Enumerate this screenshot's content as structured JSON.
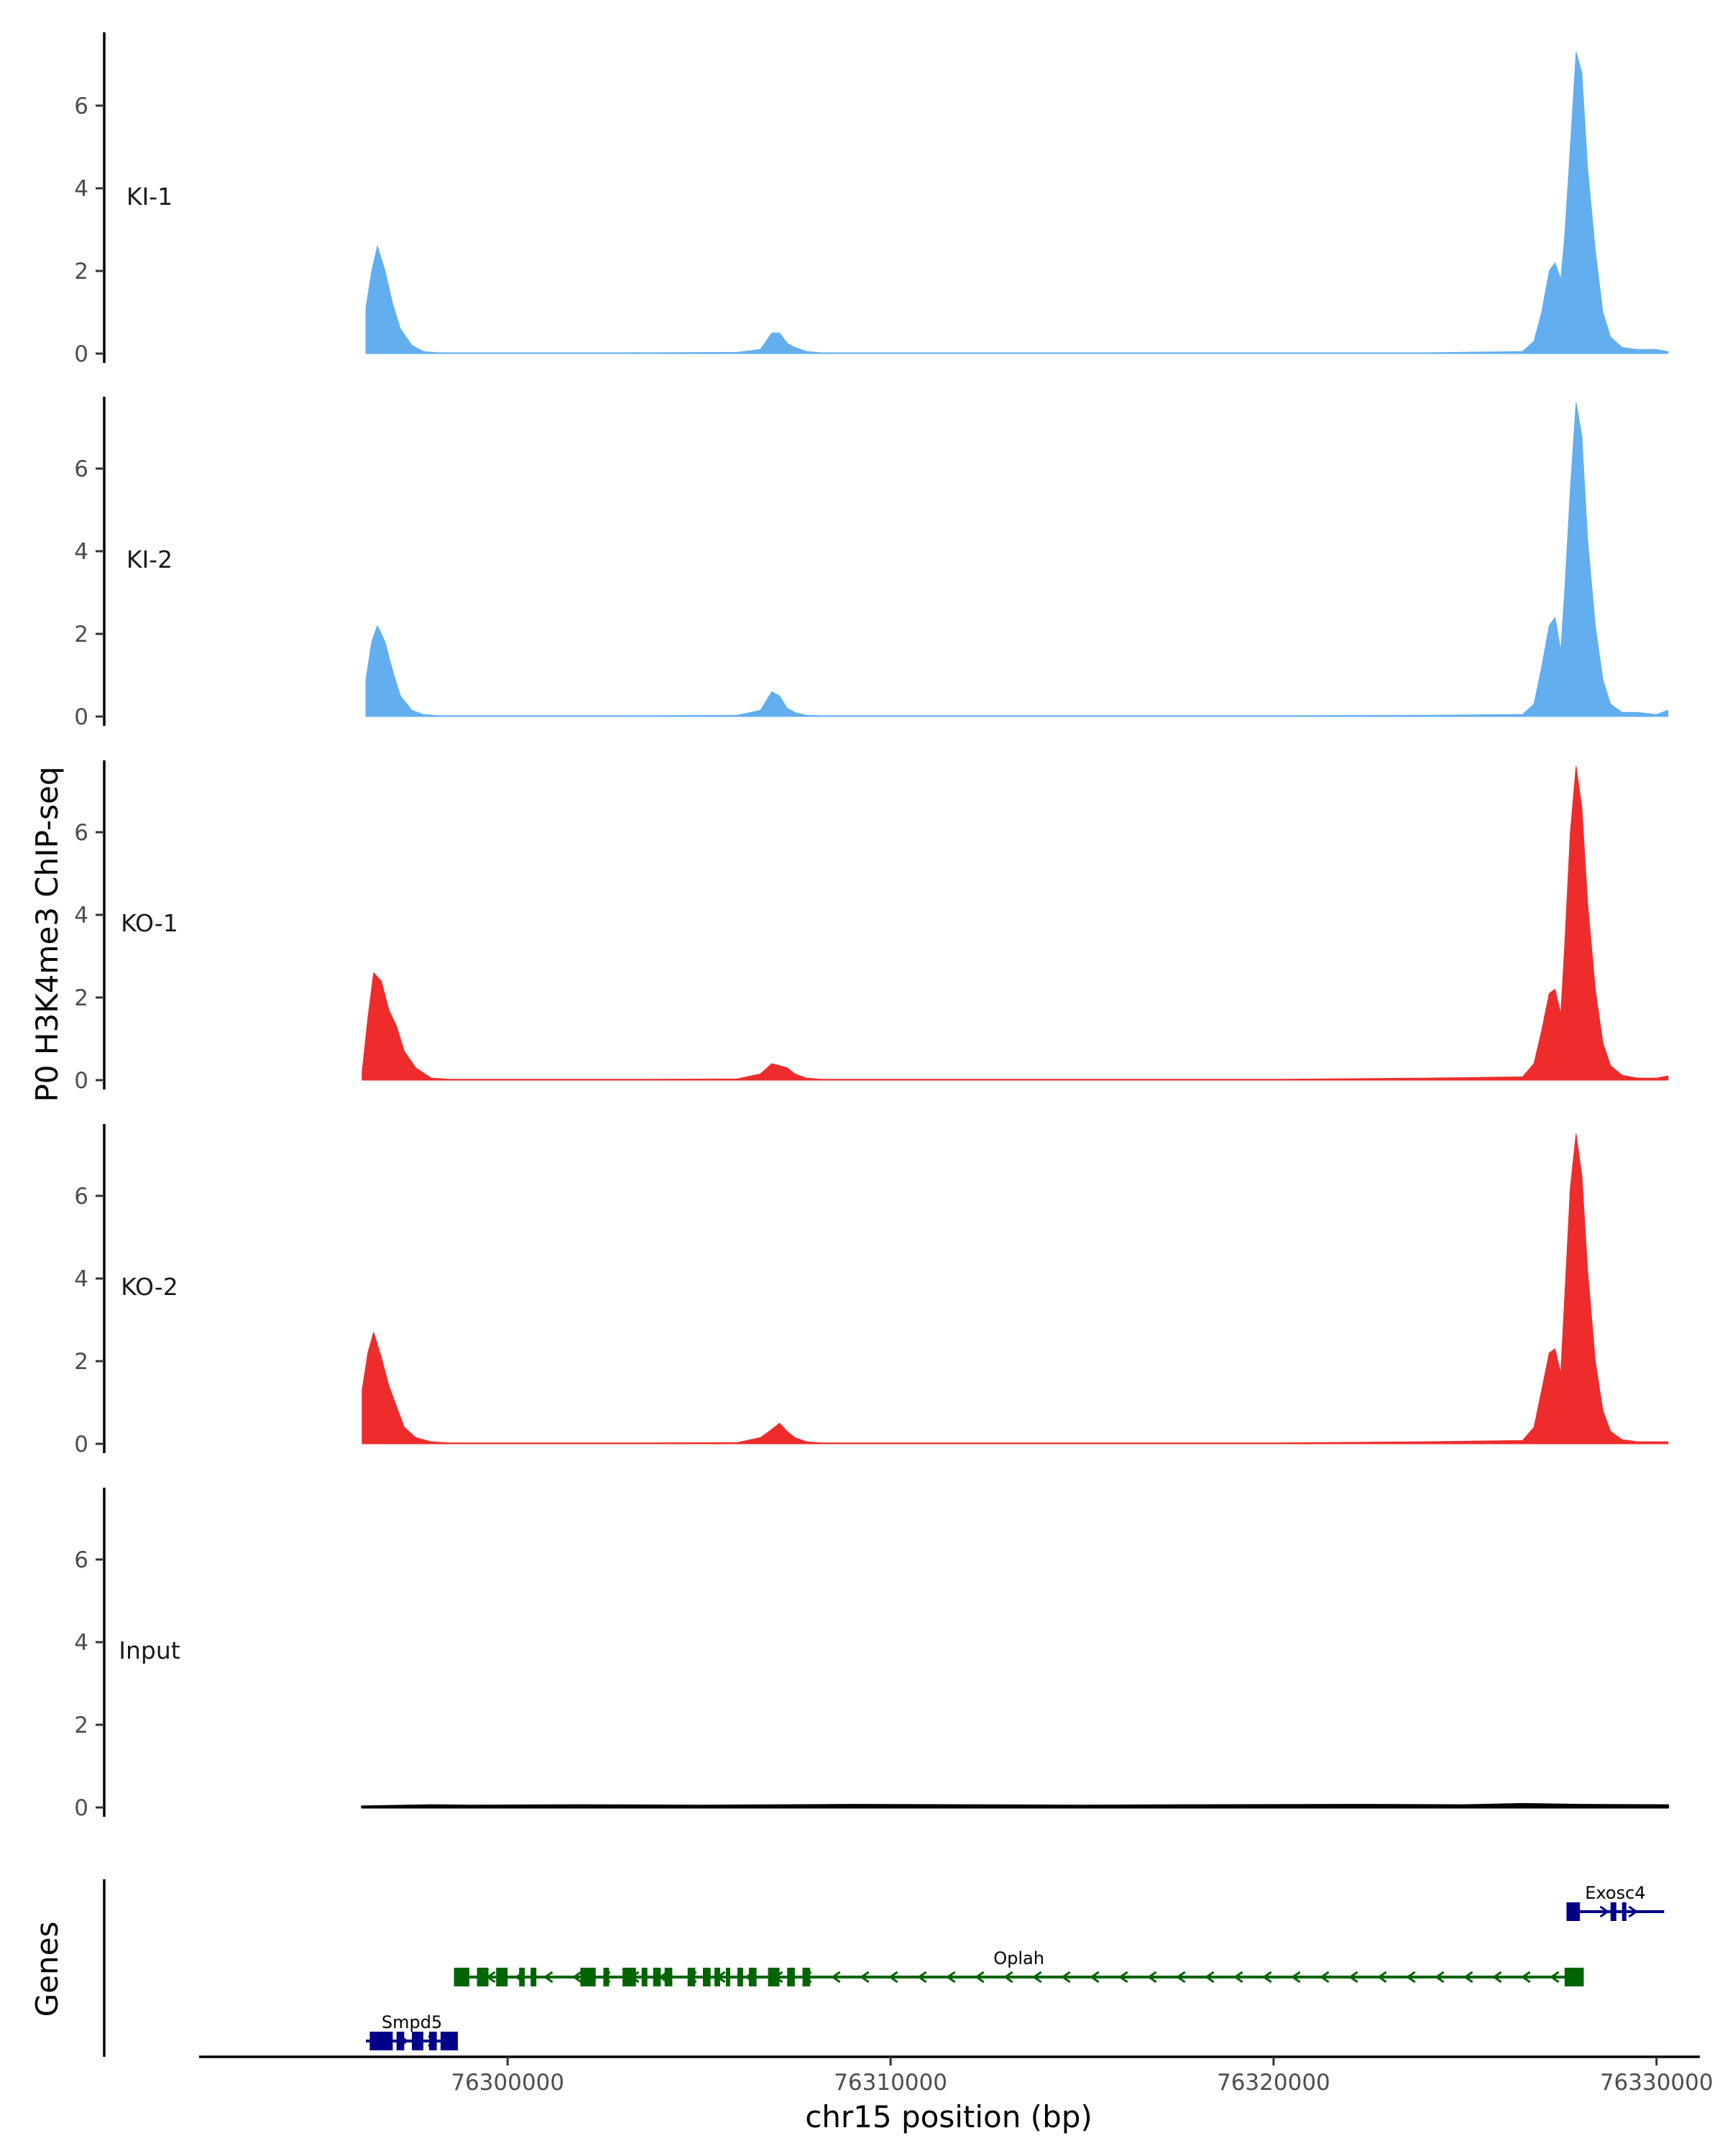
{
  "chart_data": {
    "type": "area",
    "ylabel": "P0 H3K4me3 ChIP-seq",
    "xlabel": "chr15 position (bp)",
    "genes_label": "Genes",
    "xlim": [
      76292000,
      76331000
    ],
    "ylim": [
      0,
      8
    ],
    "x_ticks": [
      76300000,
      76310000,
      76320000,
      76330000
    ],
    "x_tick_labels": [
      "76300000",
      "76310000",
      "76320000",
      "76330000"
    ],
    "y_ticks": [
      0,
      2,
      4,
      6
    ],
    "y_tick_labels": [
      "0",
      "2",
      "4",
      "6"
    ],
    "colors": {
      "KI": "#62aeee",
      "KO": "#ee2c2c",
      "Input": "#000000",
      "minus_strand": "#006400",
      "plus_strand": "#00008b"
    },
    "tracks": [
      {
        "name": "KI-1",
        "color": "#62aeee",
        "x": [
          76296300,
          76296450,
          76296600,
          76296800,
          76297000,
          76297200,
          76297500,
          76297800,
          76298200,
          76300000,
          76303000,
          76306000,
          76306600,
          76306900,
          76307100,
          76307300,
          76307500,
          76307800,
          76308200,
          76310000,
          76315000,
          76320000,
          76324000,
          76326500,
          76326800,
          76327000,
          76327200,
          76327350,
          76327500,
          76327600,
          76327750,
          76327900,
          76328050,
          76328200,
          76328400,
          76328600,
          76328800,
          76329100,
          76329500,
          76330000,
          76330300
        ],
        "values": [
          1.1,
          2.0,
          2.6,
          2.0,
          1.2,
          0.6,
          0.2,
          0.05,
          0.02,
          0.02,
          0.02,
          0.03,
          0.1,
          0.5,
          0.5,
          0.25,
          0.15,
          0.05,
          0.02,
          0.02,
          0.02,
          0.02,
          0.02,
          0.05,
          0.3,
          1.0,
          2.0,
          2.2,
          1.8,
          2.8,
          5.0,
          7.3,
          6.8,
          4.5,
          2.5,
          1.0,
          0.4,
          0.15,
          0.1,
          0.1,
          0.05
        ]
      },
      {
        "name": "KI-2",
        "color": "#62aeee",
        "x": [
          76296300,
          76296450,
          76296600,
          76296800,
          76297000,
          76297200,
          76297500,
          76297800,
          76298200,
          76300000,
          76303000,
          76306000,
          76306600,
          76306900,
          76307100,
          76307300,
          76307500,
          76307800,
          76308200,
          76310000,
          76315000,
          76320000,
          76324000,
          76326500,
          76326800,
          76327000,
          76327200,
          76327350,
          76327500,
          76327600,
          76327750,
          76327900,
          76328050,
          76328200,
          76328400,
          76328600,
          76328800,
          76329100,
          76329500,
          76330000,
          76330300
        ],
        "values": [
          0.9,
          1.8,
          2.2,
          1.8,
          1.1,
          0.5,
          0.15,
          0.05,
          0.02,
          0.02,
          0.02,
          0.03,
          0.15,
          0.6,
          0.5,
          0.2,
          0.1,
          0.03,
          0.02,
          0.02,
          0.02,
          0.02,
          0.03,
          0.05,
          0.3,
          1.2,
          2.2,
          2.4,
          1.6,
          3.0,
          5.5,
          7.6,
          6.8,
          4.3,
          2.2,
          0.9,
          0.3,
          0.1,
          0.1,
          0.05,
          0.15
        ]
      },
      {
        "name": "KO-1",
        "color": "#ee2c2c",
        "x": [
          76296200,
          76296350,
          76296500,
          76296700,
          76296900,
          76297100,
          76297300,
          76297600,
          76298000,
          76298500,
          76300000,
          76303000,
          76306000,
          76306600,
          76306900,
          76307100,
          76307300,
          76307500,
          76307800,
          76308200,
          76310000,
          76315000,
          76320000,
          76324000,
          76326500,
          76326800,
          76327000,
          76327200,
          76327350,
          76327500,
          76327600,
          76327750,
          76327900,
          76328050,
          76328200,
          76328400,
          76328600,
          76328800,
          76329100,
          76329500,
          76330000,
          76330300
        ],
        "values": [
          0.2,
          1.5,
          2.6,
          2.4,
          1.7,
          1.3,
          0.7,
          0.3,
          0.05,
          0.02,
          0.02,
          0.02,
          0.03,
          0.15,
          0.4,
          0.35,
          0.3,
          0.15,
          0.05,
          0.02,
          0.02,
          0.02,
          0.02,
          0.05,
          0.08,
          0.4,
          1.2,
          2.1,
          2.2,
          1.6,
          3.2,
          6.0,
          7.6,
          6.6,
          4.3,
          2.2,
          0.9,
          0.35,
          0.12,
          0.05,
          0.05,
          0.1
        ]
      },
      {
        "name": "KO-2",
        "color": "#ee2c2c",
        "x": [
          76296200,
          76296350,
          76296500,
          76296700,
          76296900,
          76297100,
          76297300,
          76297600,
          76298000,
          76298500,
          76300000,
          76303000,
          76306000,
          76306600,
          76306900,
          76307100,
          76307300,
          76307500,
          76307800,
          76308200,
          76310000,
          76315000,
          76320000,
          76324000,
          76326500,
          76326800,
          76327000,
          76327200,
          76327350,
          76327500,
          76327600,
          76327750,
          76327900,
          76328050,
          76328200,
          76328400,
          76328600,
          76328800,
          76329100,
          76329500,
          76330000,
          76330300
        ],
        "values": [
          1.3,
          2.2,
          2.7,
          2.1,
          1.4,
          0.9,
          0.4,
          0.15,
          0.05,
          0.02,
          0.02,
          0.02,
          0.03,
          0.15,
          0.35,
          0.5,
          0.3,
          0.15,
          0.05,
          0.02,
          0.02,
          0.02,
          0.02,
          0.05,
          0.08,
          0.4,
          1.3,
          2.2,
          2.3,
          1.7,
          3.5,
          6.2,
          7.5,
          6.5,
          4.2,
          2.0,
          0.8,
          0.3,
          0.1,
          0.05,
          0.05,
          0.05
        ]
      },
      {
        "name": "Input",
        "color": "#000000",
        "x": [
          76296200,
          76298000,
          76299000,
          76302000,
          76305000,
          76309000,
          76312000,
          76315000,
          76318000,
          76322000,
          76325000,
          76326500,
          76328000,
          76330300
        ],
        "values": [
          0.02,
          0.05,
          0.04,
          0.05,
          0.04,
          0.06,
          0.05,
          0.04,
          0.05,
          0.06,
          0.05,
          0.08,
          0.06,
          0.05
        ]
      }
    ],
    "genes": [
      {
        "name": "Exosc4",
        "strand": "+",
        "start": 76327650,
        "end": 76330200,
        "exons": [
          [
            76327650,
            76328000
          ],
          [
            76328800,
            76328950
          ],
          [
            76329100,
            76329200
          ]
        ]
      },
      {
        "name": "Oplah",
        "strand": "-",
        "start": 76298600,
        "end": 76328100,
        "exons": [
          [
            76298600,
            76299000
          ],
          [
            76299200,
            76299500
          ],
          [
            76299700,
            76300000
          ],
          [
            76300300,
            76300450
          ],
          [
            76300600,
            76300750
          ],
          [
            76301900,
            76302300
          ],
          [
            76302500,
            76302650
          ],
          [
            76303000,
            76303350
          ],
          [
            76303500,
            76303650
          ],
          [
            76303800,
            76304000
          ],
          [
            76304100,
            76304300
          ],
          [
            76304700,
            76304900
          ],
          [
            76305100,
            76305300
          ],
          [
            76305400,
            76305550
          ],
          [
            76305700,
            76305800
          ],
          [
            76306000,
            76306150
          ],
          [
            76306300,
            76306500
          ],
          [
            76306800,
            76307100
          ],
          [
            76307300,
            76307500
          ],
          [
            76307700,
            76307900
          ],
          [
            76327600,
            76328100
          ]
        ]
      },
      {
        "name": "Smpd5",
        "strand": "+",
        "start": 76296300,
        "end": 76298700,
        "exons": [
          [
            76296400,
            76297000
          ],
          [
            76297100,
            76297300
          ],
          [
            76297500,
            76297800
          ],
          [
            76297950,
            76298150
          ],
          [
            76298250,
            76298700
          ]
        ]
      }
    ]
  }
}
